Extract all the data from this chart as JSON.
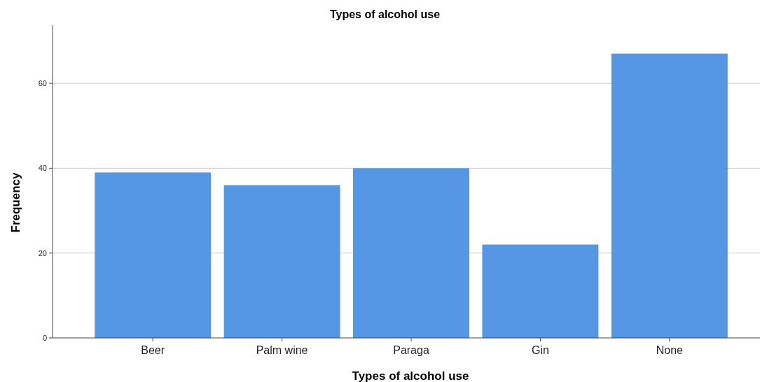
{
  "chart_data": {
    "type": "bar",
    "title": "Types of alcohol use",
    "xlabel": "Types of alcohol use",
    "ylabel": "Frequency",
    "categories": [
      "Beer",
      "Palm wine",
      "Paraga",
      "Gin",
      "None"
    ],
    "values": [
      39,
      36,
      40,
      22,
      67
    ],
    "color": "#5596e5",
    "ylim": [
      0,
      73.7
    ],
    "yticks": [
      0,
      20,
      40,
      60
    ],
    "grid": "y"
  }
}
